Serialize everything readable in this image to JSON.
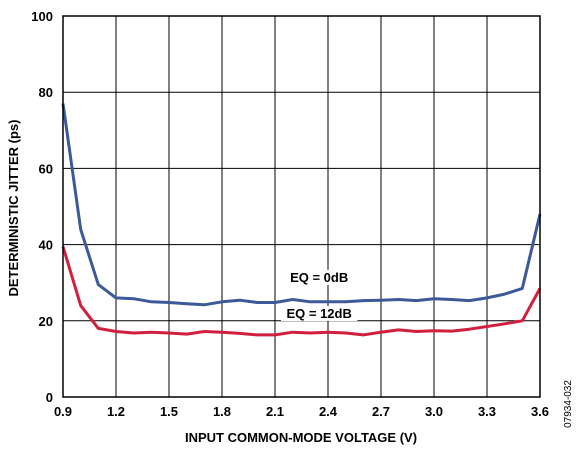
{
  "chart_data": {
    "type": "line",
    "title": "",
    "xlabel": "INPUT COMMON-MODE VOLTAGE (V)",
    "ylabel": "DETERMINISTIC JITTER (ps)",
    "xlim": [
      0.9,
      3.6
    ],
    "ylim": [
      0,
      100
    ],
    "x_ticks": [
      "0.9",
      "1.2",
      "1.5",
      "1.8",
      "2.1",
      "2.4",
      "2.7",
      "3.0",
      "3.3",
      "3.6"
    ],
    "y_ticks": [
      "0",
      "20",
      "40",
      "60",
      "80",
      "100"
    ],
    "grid": true,
    "x": [
      0.9,
      1.0,
      1.1,
      1.2,
      1.3,
      1.4,
      1.5,
      1.6,
      1.7,
      1.8,
      1.9,
      2.0,
      2.1,
      2.2,
      2.3,
      2.4,
      2.5,
      2.6,
      2.7,
      2.8,
      2.9,
      3.0,
      3.1,
      3.2,
      3.3,
      3.4,
      3.5,
      3.6
    ],
    "series": [
      {
        "name": "EQ = 0dB",
        "color": "#3c5a9a",
        "values": [
          77,
          44,
          29.5,
          26,
          25.8,
          25,
          24.8,
          24.5,
          24.2,
          25,
          25.4,
          24.8,
          24.8,
          25.6,
          25,
          25,
          25,
          25.3,
          25.4,
          25.6,
          25.3,
          25.8,
          25.6,
          25.3,
          26,
          27,
          28.5,
          48
        ]
      },
      {
        "name": "EQ = 12dB",
        "color": "#d11f3e",
        "values": [
          39.5,
          24,
          18,
          17.2,
          16.8,
          17,
          16.8,
          16.5,
          17.2,
          17,
          16.7,
          16.3,
          16.3,
          17,
          16.8,
          17,
          16.8,
          16.3,
          17,
          17.6,
          17.2,
          17.4,
          17.3,
          17.8,
          18.5,
          19.2,
          20,
          28.5
        ]
      }
    ],
    "annotations": [
      "EQ = 0dB",
      "EQ = 12dB"
    ]
  },
  "figure_id": "07934-032"
}
